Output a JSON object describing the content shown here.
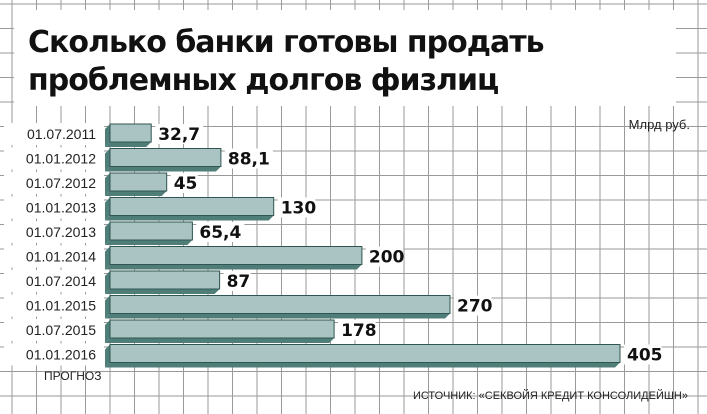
{
  "chart_data": {
    "type": "bar",
    "orientation": "horizontal",
    "title": "Сколько банки готовы продать проблемных долгов физлиц",
    "title_lines": [
      "Сколько банки готовы продать",
      "проблемных долгов физлиц"
    ],
    "units": "Млрд руб.",
    "categories": [
      "01.07.2011",
      "01.01.2012",
      "01.07.2012",
      "01.01.2013",
      "01.07.2013",
      "01.01.2014",
      "01.07.2014",
      "01.01.2015",
      "01.07.2015",
      "01.01.2016"
    ],
    "values": [
      32.7,
      88.1,
      45,
      130,
      65.4,
      200,
      87,
      270,
      178,
      405
    ],
    "value_labels": [
      "32,7",
      "88,1",
      "45",
      "130",
      "65,4",
      "200",
      "87",
      "270",
      "178",
      "405"
    ],
    "forecast_note": "ПРОГНОЗ",
    "source": "ИСТОЧНИК: «СЕКВОЙЯ КРЕДИТ КОНСОЛИДЕЙШН»",
    "xlim": [
      0,
      405
    ],
    "grid": true,
    "colors": {
      "bar_face": "#a9c4c2",
      "bar_shadow": "#4f7d78",
      "bar_edge": "#2f5652",
      "grid": "#9a9a9a"
    }
  }
}
